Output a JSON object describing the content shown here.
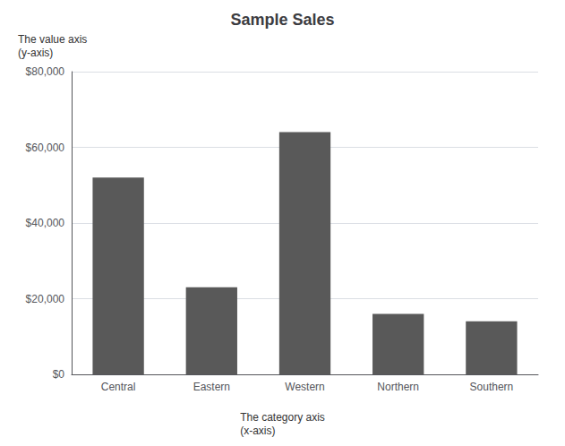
{
  "chart_data": {
    "type": "bar",
    "title": "Sample Sales",
    "categories": [
      "Central",
      "Eastern",
      "Western",
      "Northern",
      "Southern"
    ],
    "values": [
      52000,
      23000,
      64000,
      16000,
      14000
    ],
    "color": "#595959",
    "ylim": [
      0,
      80000
    ],
    "yticks": [
      {
        "value": 0,
        "label": "$0"
      },
      {
        "value": 20000,
        "label": "$20,000"
      },
      {
        "value": 40000,
        "label": "$40,000"
      },
      {
        "value": 60000,
        "label": "$60,000"
      },
      {
        "value": 80000,
        "label": "$80,000"
      }
    ],
    "grid": true,
    "annotations": [
      "The value axis\n(y-axis)",
      "The category axis\n(x-axis)"
    ]
  }
}
